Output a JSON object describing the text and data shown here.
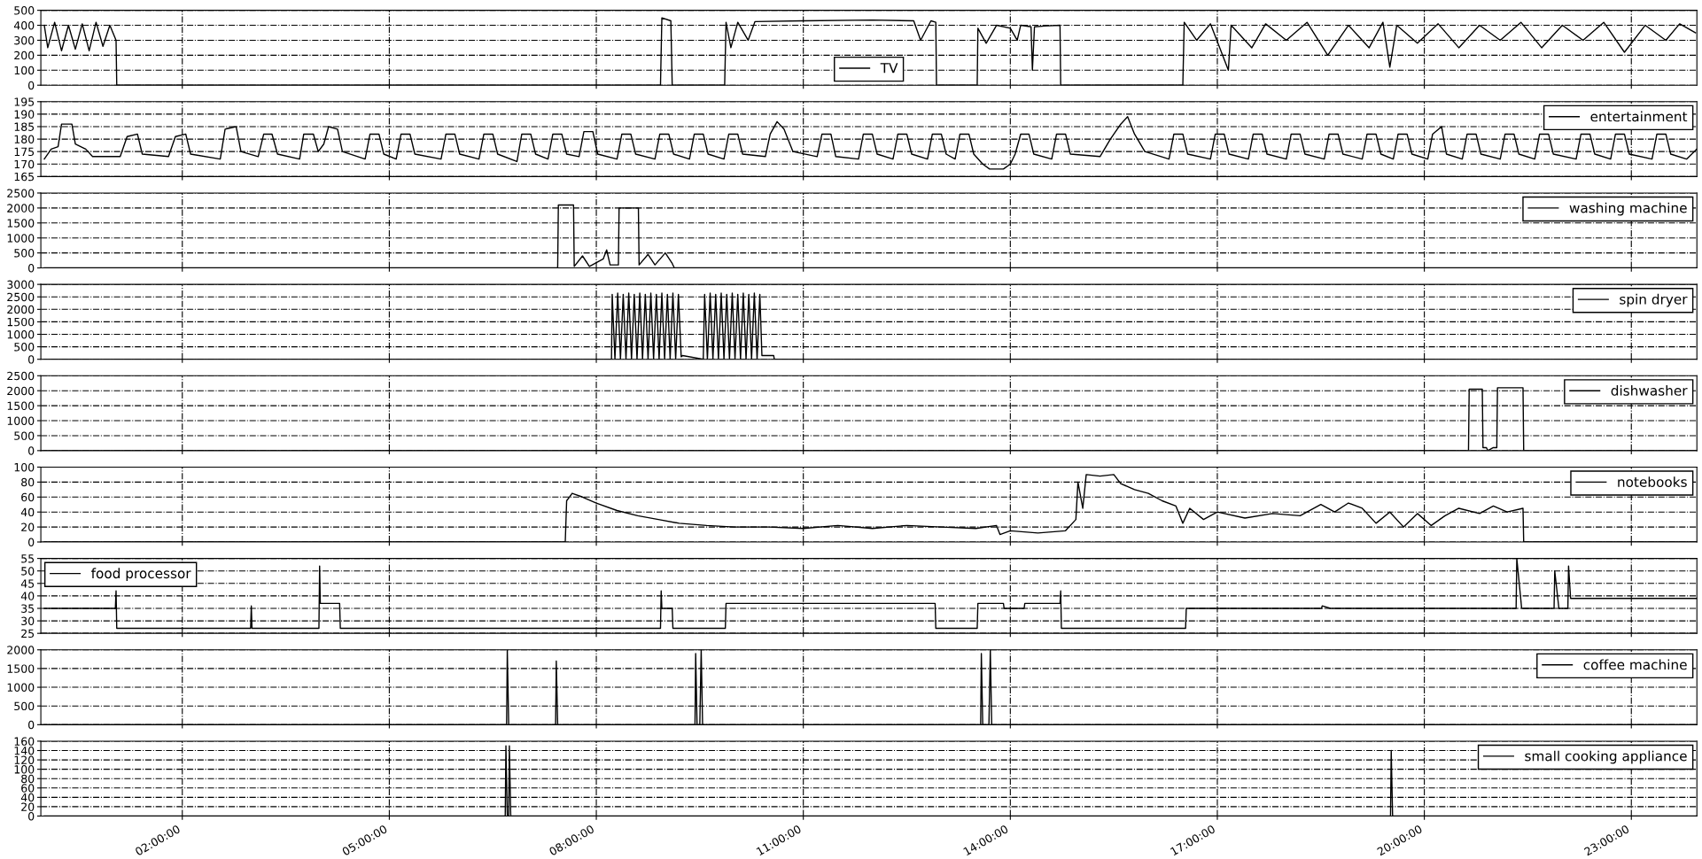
{
  "chart_data": [
    {
      "type": "line",
      "xlim": [
        -0.05,
        23.95
      ],
      "xticks": [
        {
          "value": 2,
          "label": null
        },
        {
          "value": 5,
          "label": null
        },
        {
          "value": 8,
          "label": null
        },
        {
          "value": 11,
          "label": null
        },
        {
          "value": 14,
          "label": null
        },
        {
          "value": 17,
          "label": null
        },
        {
          "value": 20,
          "label": null
        },
        {
          "value": 23,
          "label": null
        }
      ],
      "ylim": [
        0,
        500
      ],
      "yticks": [
        0,
        100,
        200,
        300,
        400,
        500
      ],
      "grid": true,
      "legend": "bottom",
      "tick_labels": "y",
      "series": [
        {
          "name": "TV",
          "color": "#000000",
          "x": [
            0.0,
            0.05,
            0.15,
            0.25,
            0.35,
            0.45,
            0.55,
            0.65,
            0.75,
            0.85,
            0.95,
            1.04,
            1.05,
            8.93,
            8.95,
            9.08,
            9.1,
            9.86,
            9.88,
            9.95,
            10.05,
            10.2,
            10.3,
            11.0,
            12.0,
            12.6,
            12.7,
            12.85,
            12.92,
            12.93,
            13.52,
            13.53,
            13.65,
            13.8,
            14.0,
            14.1,
            14.15,
            14.3,
            14.32,
            14.35,
            14.5,
            14.72,
            14.73,
            16.5,
            16.52,
            16.7,
            16.9,
            17.16,
            17.2,
            17.5,
            17.7,
            18.0,
            18.3,
            18.6,
            18.9,
            19.2,
            19.4,
            19.5,
            19.6,
            19.9,
            20.2,
            20.5,
            20.8,
            21.1,
            21.4,
            21.7,
            22.0,
            22.3,
            22.6,
            22.9,
            23.2,
            23.5,
            23.7,
            23.93
          ],
          "values": [
            400,
            250,
            420,
            230,
            400,
            240,
            410,
            230,
            420,
            260,
            400,
            300,
            0,
            0,
            450,
            430,
            0,
            0,
            420,
            250,
            420,
            300,
            425,
            430,
            435,
            430,
            300,
            430,
            420,
            0,
            0,
            380,
            280,
            400,
            380,
            300,
            400,
            390,
            100,
            390,
            395,
            400,
            0,
            0,
            420,
            300,
            410,
            100,
            400,
            250,
            410,
            300,
            420,
            200,
            400,
            250,
            420,
            120,
            400,
            280,
            410,
            250,
            400,
            300,
            420,
            250,
            400,
            300,
            420,
            220,
            400,
            300,
            410,
            350
          ]
        }
      ]
    },
    {
      "type": "line",
      "xlim": [
        -0.05,
        23.95
      ],
      "xticks": [
        {
          "value": 2,
          "label": null
        },
        {
          "value": 5,
          "label": null
        },
        {
          "value": 8,
          "label": null
        },
        {
          "value": 11,
          "label": null
        },
        {
          "value": 14,
          "label": null
        },
        {
          "value": 17,
          "label": null
        },
        {
          "value": 20,
          "label": null
        },
        {
          "value": 23,
          "label": null
        }
      ],
      "ylim": [
        165,
        195
      ],
      "yticks": [
        165,
        170,
        175,
        180,
        185,
        190,
        195
      ],
      "grid": true,
      "legend": "top right",
      "tick_labels": "y",
      "series": [
        {
          "name": "entertainment",
          "color": "#000000",
          "x": [
            0,
            0.1,
            0.2,
            0.25,
            0.4,
            0.45,
            0.6,
            0.7,
            1.1,
            1.2,
            1.35,
            1.42,
            1.8,
            1.9,
            2.05,
            2.12,
            2.55,
            2.62,
            2.78,
            2.85,
            3.1,
            3.18,
            3.3,
            3.38,
            3.7,
            3.76,
            3.9,
            3.97,
            4.05,
            4.12,
            4.25,
            4.32,
            4.65,
            4.72,
            4.85,
            4.92,
            5.1,
            5.17,
            5.3,
            5.37,
            5.75,
            5.82,
            5.95,
            6.02,
            6.3,
            6.37,
            6.5,
            6.57,
            6.85,
            6.92,
            7.05,
            7.12,
            7.3,
            7.37,
            7.5,
            7.57,
            7.75,
            7.82,
            7.95,
            8.02,
            8.3,
            8.37,
            8.5,
            8.57,
            8.85,
            8.92,
            9.05,
            9.12,
            9.35,
            9.42,
            9.55,
            9.62,
            9.85,
            9.92,
            10.05,
            10.12,
            10.45,
            10.52,
            10.62,
            10.72,
            10.85,
            11.2,
            11.27,
            11.4,
            11.47,
            11.8,
            11.87,
            12.0,
            12.07,
            12.3,
            12.37,
            12.5,
            12.57,
            12.8,
            12.87,
            13.0,
            13.07,
            13.2,
            13.27,
            13.4,
            13.47,
            13.6,
            13.7,
            13.9,
            14.0,
            14.07,
            14.15,
            14.27,
            14.34,
            14.6,
            14.67,
            14.8,
            14.87,
            15.3,
            15.45,
            15.6,
            15.7,
            15.8,
            15.95,
            16.3,
            16.37,
            16.5,
            16.57,
            16.9,
            16.97,
            17.1,
            17.17,
            17.45,
            17.52,
            17.65,
            17.72,
            18.0,
            18.07,
            18.2,
            18.27,
            18.55,
            18.62,
            18.75,
            18.82,
            19.1,
            19.17,
            19.3,
            19.37,
            19.55,
            19.62,
            19.75,
            19.82,
            20.05,
            20.12,
            20.25,
            20.32,
            20.55,
            20.62,
            20.75,
            20.82,
            21.1,
            21.17,
            21.3,
            21.37,
            21.6,
            21.67,
            21.8,
            21.87,
            22.2,
            22.27,
            22.4,
            22.47,
            22.7,
            22.77,
            22.9,
            22.97,
            23.3,
            23.37,
            23.5,
            23.57,
            23.8,
            23.95
          ],
          "values": [
            172,
            176,
            177,
            186,
            186,
            178,
            176,
            173,
            173,
            181,
            182,
            174,
            173,
            181,
            182,
            174,
            172,
            184,
            185,
            175,
            173,
            182,
            182,
            174,
            172,
            182,
            182,
            175,
            178,
            185,
            184,
            175,
            172,
            182,
            182,
            174,
            172,
            182,
            182,
            174,
            172,
            182,
            182,
            174,
            172,
            182,
            182,
            174,
            171,
            182,
            182,
            174,
            172,
            182,
            182,
            174,
            173,
            183,
            183,
            174,
            172,
            182,
            182,
            174,
            172,
            182,
            182,
            174,
            172,
            182,
            182,
            174,
            172,
            182,
            182,
            174,
            173,
            182,
            187,
            184,
            175,
            173,
            182,
            182,
            173,
            172,
            182,
            182,
            174,
            172,
            182,
            182,
            174,
            172,
            182,
            182,
            174,
            172,
            182,
            182,
            174,
            170,
            168,
            168,
            170,
            174,
            182,
            182,
            174,
            172,
            182,
            182,
            174,
            173,
            180,
            186,
            189,
            182,
            175,
            172,
            182,
            182,
            174,
            172,
            182,
            182,
            174,
            172,
            182,
            182,
            174,
            172,
            182,
            182,
            174,
            172,
            182,
            182,
            174,
            172,
            182,
            182,
            174,
            172,
            182,
            182,
            174,
            172,
            182,
            185,
            174,
            172,
            182,
            182,
            174,
            172,
            182,
            182,
            174,
            172,
            182,
            182,
            174,
            172,
            182,
            182,
            174,
            172,
            182,
            182,
            174,
            172,
            182,
            182,
            174,
            172,
            176
          ]
        }
      ]
    },
    {
      "type": "line",
      "xlim": [
        -0.05,
        23.95
      ],
      "xticks": [
        {
          "value": 2,
          "label": null
        },
        {
          "value": 5,
          "label": null
        },
        {
          "value": 8,
          "label": null
        },
        {
          "value": 11,
          "label": null
        },
        {
          "value": 14,
          "label": null
        },
        {
          "value": 17,
          "label": null
        },
        {
          "value": 20,
          "label": null
        },
        {
          "value": 23,
          "label": null
        }
      ],
      "ylim": [
        0,
        2500
      ],
      "yticks": [
        0,
        500,
        1000,
        1500,
        2000,
        2500
      ],
      "grid": true,
      "legend": "top right",
      "tick_labels": "y",
      "series": [
        {
          "name": "washing machine",
          "color": "#000000",
          "x": [
            0,
            7.44,
            7.45,
            7.67,
            7.68,
            7.8,
            7.9,
            8.1,
            8.15,
            8.2,
            8.32,
            8.33,
            8.61,
            8.62,
            8.75,
            8.85,
            9.0,
            9.1,
            9.13,
            23.95
          ],
          "values": [
            0,
            0,
            2100,
            2100,
            50,
            400,
            50,
            300,
            600,
            100,
            100,
            2000,
            2000,
            100,
            450,
            100,
            500,
            150,
            0,
            0
          ]
        }
      ]
    },
    {
      "type": "line",
      "xlim": [
        -0.05,
        23.95
      ],
      "xticks": [
        {
          "value": 2,
          "label": null
        },
        {
          "value": 5,
          "label": null
        },
        {
          "value": 8,
          "label": null
        },
        {
          "value": 11,
          "label": null
        },
        {
          "value": 14,
          "label": null
        },
        {
          "value": 17,
          "label": null
        },
        {
          "value": 20,
          "label": null
        },
        {
          "value": 23,
          "label": null
        }
      ],
      "ylim": [
        0,
        3000
      ],
      "yticks": [
        0,
        500,
        1000,
        1500,
        2000,
        2500,
        3000
      ],
      "grid": true,
      "legend": "top right",
      "tick_labels": "y",
      "series": [
        {
          "name": "spin dryer",
          "color": "#000000",
          "x": [
            0,
            8.22,
            8.23,
            8.27,
            8.31,
            8.35,
            8.39,
            8.43,
            8.47,
            8.51,
            8.55,
            8.59,
            8.63,
            8.67,
            8.71,
            8.75,
            8.79,
            8.83,
            8.87,
            8.91,
            8.95,
            8.99,
            9.03,
            9.07,
            9.11,
            9.15,
            9.19,
            9.23,
            9.25,
            9.55,
            9.57,
            9.61,
            9.65,
            9.69,
            9.73,
            9.77,
            9.81,
            9.85,
            9.89,
            9.93,
            9.97,
            10.01,
            10.05,
            10.09,
            10.13,
            10.17,
            10.21,
            10.25,
            10.29,
            10.33,
            10.37,
            10.4,
            10.57,
            10.58,
            23.95
          ],
          "values": [
            0,
            0,
            2600,
            0,
            2650,
            0,
            2600,
            0,
            2650,
            0,
            2600,
            0,
            2650,
            0,
            2600,
            0,
            2650,
            0,
            2600,
            0,
            2650,
            0,
            2600,
            0,
            2650,
            0,
            2600,
            100,
            150,
            0,
            2600,
            0,
            2650,
            0,
            2600,
            0,
            2650,
            0,
            2600,
            0,
            2650,
            0,
            2600,
            0,
            2650,
            0,
            2600,
            0,
            2650,
            0,
            2600,
            150,
            150,
            0,
            0
          ]
        }
      ]
    },
    {
      "type": "line",
      "xlim": [
        -0.05,
        23.95
      ],
      "xticks": [
        {
          "value": 2,
          "label": null
        },
        {
          "value": 5,
          "label": null
        },
        {
          "value": 8,
          "label": null
        },
        {
          "value": 11,
          "label": null
        },
        {
          "value": 14,
          "label": null
        },
        {
          "value": 17,
          "label": null
        },
        {
          "value": 20,
          "label": null
        },
        {
          "value": 23,
          "label": null
        }
      ],
      "ylim": [
        0,
        2500
      ],
      "yticks": [
        0,
        500,
        1000,
        1500,
        2000,
        2500
      ],
      "grid": true,
      "legend": "top right",
      "tick_labels": "y",
      "series": [
        {
          "name": "dishwasher",
          "color": "#000000",
          "x": [
            0,
            20.64,
            20.65,
            20.84,
            20.85,
            20.9,
            20.92,
            21.0,
            21.05,
            21.06,
            21.43,
            21.44,
            23.95
          ],
          "values": [
            0,
            0,
            2050,
            2050,
            100,
            100,
            0,
            100,
            100,
            2100,
            2100,
            0,
            0
          ]
        }
      ]
    },
    {
      "type": "line",
      "xlim": [
        -0.05,
        23.95
      ],
      "xticks": [
        {
          "value": 2,
          "label": null
        },
        {
          "value": 5,
          "label": null
        },
        {
          "value": 8,
          "label": null
        },
        {
          "value": 11,
          "label": null
        },
        {
          "value": 14,
          "label": null
        },
        {
          "value": 17,
          "label": null
        },
        {
          "value": 20,
          "label": null
        },
        {
          "value": 23,
          "label": null
        }
      ],
      "ylim": [
        0,
        100
      ],
      "yticks": [
        0,
        20,
        40,
        60,
        80,
        100
      ],
      "grid": true,
      "legend": "top right",
      "tick_labels": "y",
      "series": [
        {
          "name": "notebooks",
          "color": "#000000",
          "x": [
            0,
            7.55,
            7.57,
            7.65,
            7.8,
            8.0,
            8.3,
            8.6,
            8.9,
            9.2,
            9.6,
            10.0,
            10.5,
            11.0,
            11.5,
            12.0,
            12.5,
            13.0,
            13.5,
            13.8,
            13.85,
            14.0,
            14.4,
            14.8,
            14.95,
            14.98,
            15.05,
            15.1,
            15.3,
            15.5,
            15.6,
            15.8,
            16.0,
            16.2,
            16.4,
            16.5,
            16.6,
            16.8,
            17.0,
            17.4,
            17.8,
            18.2,
            18.5,
            18.7,
            18.9,
            19.1,
            19.3,
            19.5,
            19.7,
            19.9,
            20.1,
            20.3,
            20.5,
            20.8,
            21.0,
            21.2,
            21.43,
            21.44,
            23.95
          ],
          "values": [
            0,
            0,
            55,
            65,
            60,
            52,
            42,
            35,
            30,
            25,
            22,
            20,
            20,
            18,
            22,
            18,
            22,
            20,
            18,
            22,
            10,
            15,
            12,
            15,
            30,
            80,
            45,
            90,
            88,
            90,
            78,
            70,
            65,
            55,
            48,
            25,
            45,
            30,
            40,
            32,
            38,
            35,
            50,
            40,
            52,
            45,
            25,
            40,
            20,
            38,
            22,
            35,
            45,
            38,
            48,
            40,
            45,
            0,
            0
          ]
        }
      ]
    },
    {
      "type": "line",
      "xlim": [
        -0.05,
        23.95
      ],
      "xticks": [
        {
          "value": 2,
          "label": null
        },
        {
          "value": 5,
          "label": null
        },
        {
          "value": 8,
          "label": null
        },
        {
          "value": 11,
          "label": null
        },
        {
          "value": 14,
          "label": null
        },
        {
          "value": 17,
          "label": null
        },
        {
          "value": 20,
          "label": null
        },
        {
          "value": 23,
          "label": null
        }
      ],
      "ylim": [
        25,
        55
      ],
      "yticks": [
        25,
        30,
        35,
        40,
        45,
        50,
        55
      ],
      "grid": true,
      "legend": "top left",
      "tick_labels": "y",
      "series": [
        {
          "name": "food processor",
          "color": "#000000",
          "x": [
            0,
            1.03,
            1.04,
            1.05,
            2.99,
            3.0,
            3.01,
            3.98,
            3.99,
            4.0,
            4.28,
            4.29,
            8.93,
            8.94,
            8.95,
            9.1,
            9.11,
            9.87,
            9.88,
            12.91,
            12.92,
            13.52,
            13.53,
            13.9,
            13.91,
            14.2,
            14.21,
            14.72,
            14.73,
            14.74,
            16.54,
            16.55,
            18.51,
            18.52,
            18.64,
            18.65,
            21.33,
            21.34,
            21.4,
            21.41,
            21.88,
            21.89,
            21.95,
            22.08,
            22.09,
            22.12,
            23.95
          ],
          "values": [
            35,
            35,
            42,
            27,
            27,
            36,
            27,
            27,
            52,
            37,
            37,
            27,
            27,
            42,
            35,
            35,
            27,
            27,
            37,
            37,
            27,
            27,
            37,
            37,
            35,
            35,
            37,
            37,
            42,
            27,
            27,
            35,
            35,
            36,
            35,
            35,
            35,
            55,
            38,
            35,
            35,
            50,
            35,
            35,
            52,
            39,
            39
          ]
        }
      ]
    },
    {
      "type": "line",
      "xlim": [
        -0.05,
        23.95
      ],
      "xticks": [
        {
          "value": 2,
          "label": null
        },
        {
          "value": 5,
          "label": null
        },
        {
          "value": 8,
          "label": null
        },
        {
          "value": 11,
          "label": null
        },
        {
          "value": 14,
          "label": null
        },
        {
          "value": 17,
          "label": null
        },
        {
          "value": 20,
          "label": null
        },
        {
          "value": 23,
          "label": null
        }
      ],
      "ylim": [
        0,
        2000
      ],
      "yticks": [
        0,
        500,
        1000,
        1500,
        2000
      ],
      "grid": true,
      "legend": "top right",
      "tick_labels": "y",
      "series": [
        {
          "name": "coffee machine",
          "color": "#000000",
          "x": [
            0,
            6.7,
            6.71,
            6.73,
            6.74,
            7.41,
            7.42,
            7.44,
            7.45,
            9.43,
            9.44,
            9.46,
            9.5,
            9.52,
            9.54,
            13.57,
            13.58,
            13.6,
            13.69,
            13.71,
            13.73,
            23.95
          ],
          "values": [
            0,
            0,
            2000,
            0,
            0,
            0,
            1700,
            0,
            0,
            0,
            1900,
            0,
            0,
            2000,
            0,
            0,
            1900,
            0,
            0,
            2000,
            0,
            0
          ]
        }
      ]
    },
    {
      "type": "line",
      "xlim": [
        -0.05,
        23.95
      ],
      "xticks": [
        {
          "value": 2,
          "label": "02:00:00"
        },
        {
          "value": 5,
          "label": "05:00:00"
        },
        {
          "value": 8,
          "label": "08:00:00"
        },
        {
          "value": 11,
          "label": "11:00:00"
        },
        {
          "value": 14,
          "label": "14:00:00"
        },
        {
          "value": 17,
          "label": "17:00:00"
        },
        {
          "value": 20,
          "label": "20:00:00"
        },
        {
          "value": 23,
          "label": "23:00:00"
        }
      ],
      "ylim": [
        0,
        160
      ],
      "yticks": [
        0,
        20,
        40,
        60,
        80,
        100,
        120,
        140,
        160
      ],
      "grid": true,
      "legend": "top right",
      "series": [
        {
          "name": "small cooking appliance",
          "color": "#000000",
          "x": [
            0,
            6.68,
            6.69,
            6.71,
            6.73,
            6.74,
            6.76,
            19.51,
            19.52,
            19.54,
            23.95
          ],
          "values": [
            0,
            0,
            150,
            0,
            0,
            150,
            0,
            0,
            140,
            0,
            0
          ]
        }
      ]
    }
  ]
}
